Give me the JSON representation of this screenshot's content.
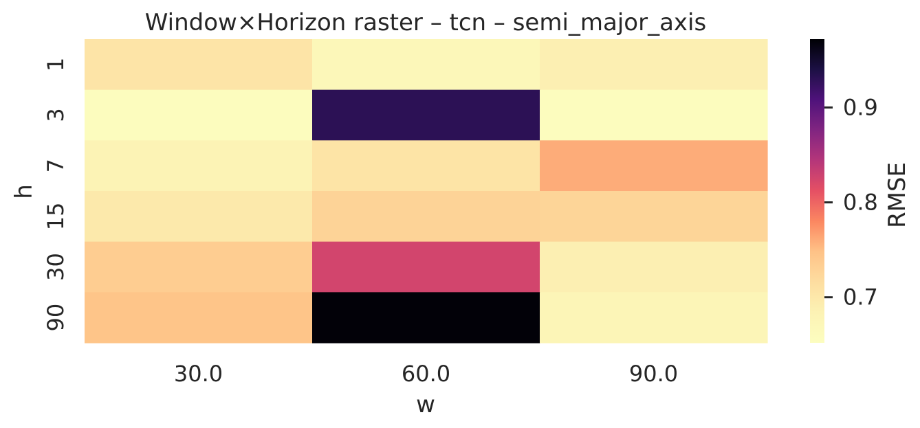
{
  "chart_data": {
    "type": "heatmap",
    "title": "Window×Horizon raster – tcn – semi_major_axis",
    "xlabel": "w",
    "ylabel": "h",
    "x_categories": [
      "30.0",
      "60.0",
      "90.0"
    ],
    "y_categories": [
      "1",
      "3",
      "7",
      "15",
      "30",
      "90"
    ],
    "values": [
      [
        0.705,
        0.67,
        0.688
      ],
      [
        0.655,
        0.93,
        0.656
      ],
      [
        0.68,
        0.706,
        0.76
      ],
      [
        0.698,
        0.728,
        0.726
      ],
      [
        0.735,
        0.825,
        0.688
      ],
      [
        0.745,
        0.97,
        0.674
      ]
    ],
    "colorbar": {
      "label": "RMSE",
      "vmin": 0.652,
      "vmax": 0.972,
      "ticks": [
        0.7,
        0.8,
        0.9
      ],
      "tick_labels": [
        "0.7",
        "0.8",
        "0.9"
      ],
      "colormap": "magma_r"
    }
  }
}
